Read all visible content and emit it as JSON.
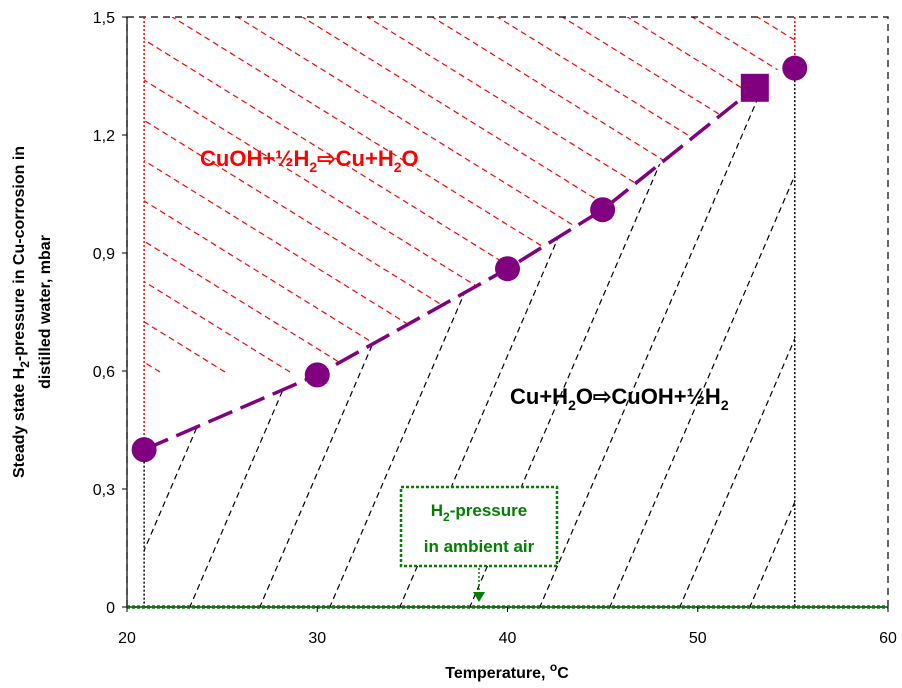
{
  "chart_data": {
    "type": "scatter",
    "xlabel_text": "Temperature, ",
    "xlabel_sup": "o",
    "xlabel_unit": "C",
    "ylabel_line1_a": "Steady state H",
    "ylabel_line1_sub": "2",
    "ylabel_line1_b": "-pressure in Cu-corrosion in",
    "ylabel_line2": "distilled water, mbar",
    "xlim": [
      20,
      60
    ],
    "ylim": [
      0,
      1.5
    ],
    "xticks": [
      20,
      30,
      40,
      50,
      60
    ],
    "yticks": [
      0,
      0.3,
      0.6,
      0.9,
      1.2,
      1.5
    ],
    "ytick_labels": [
      "0",
      "0,3",
      "0,6",
      "0,9",
      "1,2",
      "1,5"
    ],
    "grid": false,
    "series": [
      {
        "marker": "circle",
        "color": "#800080",
        "points": [
          {
            "x": 20.9,
            "y": 0.4
          },
          {
            "x": 30.0,
            "y": 0.59
          },
          {
            "x": 40.0,
            "y": 0.86
          },
          {
            "x": 45.0,
            "y": 1.01
          },
          {
            "x": 55.1,
            "y": 1.37
          }
        ]
      },
      {
        "marker": "square",
        "color": "#800080",
        "points": [
          {
            "x": 53.0,
            "y": 1.32
          }
        ]
      }
    ],
    "boundary_line": {
      "style": "dashed",
      "color": "#800080",
      "points": [
        [
          20.9,
          0.4
        ],
        [
          30.0,
          0.59
        ],
        [
          40.0,
          0.86
        ],
        [
          45.0,
          1.01
        ],
        [
          53.0,
          1.32
        ]
      ]
    },
    "vertical_lines": [
      {
        "x": 20.9,
        "color": "#000000",
        "style": "dotted"
      },
      {
        "x": 20.9,
        "color": "#ff0000",
        "style": "dotted"
      },
      {
        "x": 55.1,
        "color": "#000000",
        "style": "dotted"
      },
      {
        "x": 55.1,
        "color": "#ff0000",
        "style": "dotted"
      }
    ],
    "ambient_line": {
      "y": 0,
      "color": "#008000",
      "style": "dotted"
    },
    "annotations": {
      "upper_region": {
        "color": "#ff0000",
        "parts": [
          "CuOH+½H",
          "2",
          "⇨Cu+H",
          "2",
          "O"
        ]
      },
      "lower_region": {
        "color": "#000000",
        "parts": [
          "Cu+H",
          "2",
          "O⇨CuOH+½H",
          "2"
        ]
      },
      "ambient_box": {
        "color": "#008000",
        "line1_a": "H",
        "line1_sub": "2",
        "line1_b": "-pressure",
        "line2": "in ambient air",
        "arrow": "down-arrow"
      }
    },
    "colors": {
      "upper_hatch": "#ff0000",
      "lower_hatch": "#000000",
      "markers": "#800080",
      "ambient": "#008000"
    }
  }
}
